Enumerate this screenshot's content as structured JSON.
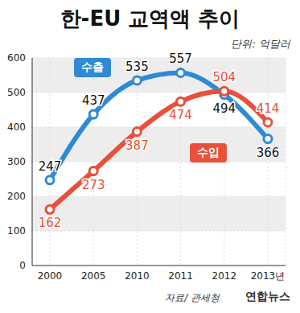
{
  "chart_data": {
    "type": "line",
    "title": "한-EU 교역액 추이",
    "ylabel": "단위: 억달러",
    "annotations": [
      "자료/ 관세청",
      "연합뉴스"
    ],
    "categories": [
      "2000",
      "2005",
      "2010",
      "2011",
      "2012",
      "2013년"
    ],
    "series": [
      {
        "name": "수출",
        "color": "#2f8ad6",
        "values": [
          247,
          437,
          535,
          557,
          494,
          366
        ]
      },
      {
        "name": "수입",
        "color": "#e8503a",
        "values": [
          162,
          273,
          387,
          474,
          504,
          414
        ]
      }
    ],
    "ylim": [
      0,
      600
    ],
    "yticks": [
      0,
      100,
      200,
      300,
      400,
      500,
      600
    ],
    "grid": true,
    "data_labels": true,
    "marker": "circle"
  }
}
